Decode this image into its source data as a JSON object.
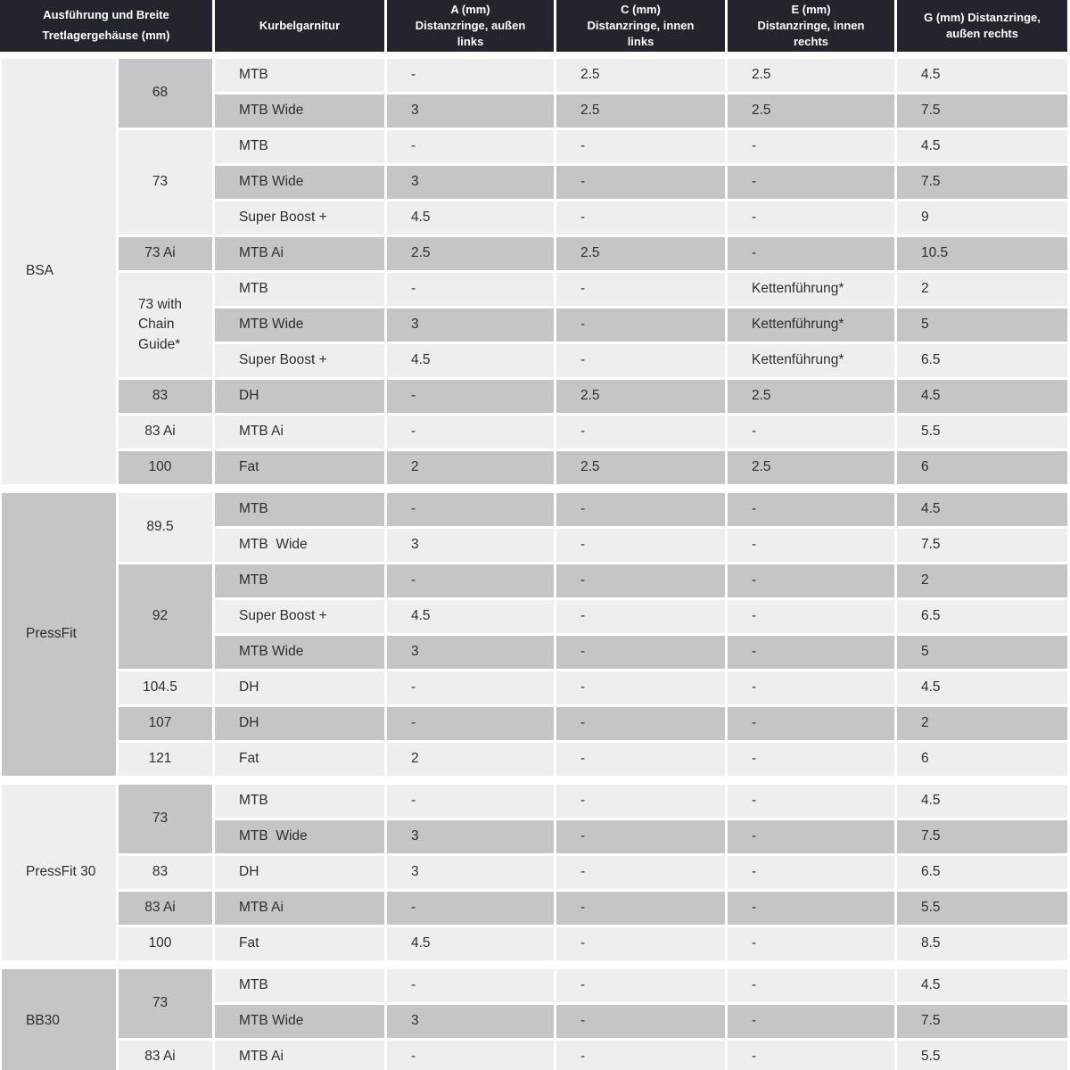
{
  "colors": {
    "header_bg": "#22252b",
    "header_text": "#ffffff",
    "row_light": "#eeeeef",
    "row_dark": "#c5c5c8",
    "text": "#2e2e2e",
    "background": "#ffffff"
  },
  "header": {
    "columns": [
      {
        "label": "Ausführung und Breite\nTretlagergehäuse (mm)"
      },
      {
        "label": "Kurbelgarnitur"
      },
      {
        "label": "A (mm)\nDistanzringe, außen\nlinks"
      },
      {
        "label": "C (mm)\nDistanzringe, innen\nlinks"
      },
      {
        "label": "E (mm)\nDistanzringe, innen\nrechts"
      },
      {
        "label": "G (mm) Distanzringe,\naußen rechts"
      }
    ]
  },
  "sections": [
    {
      "label": "BSA",
      "shade": "light",
      "groups": [
        {
          "width": "68",
          "shade": "dark",
          "rows": [
            {
              "crankset": "MTB",
              "shade": "light",
              "a": "-",
              "c": "2.5",
              "e": "2.5",
              "g": "4.5"
            },
            {
              "crankset": "MTB Wide",
              "shade": "dark",
              "a": "3",
              "c": "2.5",
              "e": "2.5",
              "g": "7.5"
            }
          ]
        },
        {
          "width": "73",
          "shade": "light",
          "rows": [
            {
              "crankset": "MTB",
              "shade": "light",
              "a": "-",
              "c": "-",
              "e": "-",
              "g": "4.5"
            },
            {
              "crankset": "MTB Wide",
              "shade": "dark",
              "a": "3",
              "c": "-",
              "e": "-",
              "g": "7.5"
            },
            {
              "crankset": "Super Boost +",
              "shade": "light",
              "a": "4.5",
              "c": "-",
              "e": "-",
              "g": "9"
            }
          ]
        },
        {
          "width": "73 Ai",
          "shade": "dark",
          "rows": [
            {
              "crankset": "MTB Ai",
              "shade": "dark",
              "a": "2.5",
              "c": "2.5",
              "e": "-",
              "g": "10.5"
            }
          ]
        },
        {
          "width": "73 with\nChain\nGuide*",
          "shade": "light",
          "rows": [
            {
              "crankset": "MTB",
              "shade": "light",
              "a": "-",
              "c": "-",
              "e": "Kettenführung*",
              "g": "2"
            },
            {
              "crankset": "MTB Wide",
              "shade": "dark",
              "a": "3",
              "c": "-",
              "e": "Kettenführung*",
              "g": "5"
            },
            {
              "crankset": "Super Boost +",
              "shade": "light",
              "a": "4.5",
              "c": "-",
              "e": "Kettenführung*",
              "g": "6.5"
            }
          ]
        },
        {
          "width": "83",
          "shade": "dark",
          "rows": [
            {
              "crankset": "DH",
              "shade": "dark",
              "a": "-",
              "c": "2.5",
              "e": "2.5",
              "g": "4.5"
            }
          ]
        },
        {
          "width": "83 Ai",
          "shade": "light",
          "rows": [
            {
              "crankset": "MTB Ai",
              "shade": "light",
              "a": "-",
              "c": "-",
              "e": "-",
              "g": "5.5"
            }
          ]
        },
        {
          "width": "100",
          "shade": "dark",
          "rows": [
            {
              "crankset": "Fat",
              "shade": "dark",
              "a": "2",
              "c": "2.5",
              "e": "2.5",
              "g": "6"
            }
          ]
        }
      ]
    },
    {
      "label": "PressFit",
      "shade": "dark",
      "groups": [
        {
          "width": "89.5",
          "shade": "light",
          "rows": [
            {
              "crankset": "MTB",
              "shade": "dark",
              "a": "-",
              "c": "-",
              "e": "-",
              "g": "4.5"
            },
            {
              "crankset": "MTB  Wide",
              "shade": "light",
              "a": "3",
              "c": "-",
              "e": "-",
              "g": "7.5"
            }
          ]
        },
        {
          "width": "92",
          "shade": "dark",
          "rows": [
            {
              "crankset": "MTB",
              "shade": "dark",
              "a": "-",
              "c": "-",
              "e": "-",
              "g": "2"
            },
            {
              "crankset": "Super Boost +",
              "shade": "light",
              "a": "4.5",
              "c": "-",
              "e": "-",
              "g": "6.5"
            },
            {
              "crankset": "MTB Wide",
              "shade": "dark",
              "a": "3",
              "c": "-",
              "e": "-",
              "g": "5"
            }
          ]
        },
        {
          "width": "104.5",
          "shade": "light",
          "rows": [
            {
              "crankset": "DH",
              "shade": "light",
              "a": "-",
              "c": "-",
              "e": "-",
              "g": "4.5"
            }
          ]
        },
        {
          "width": "107",
          "shade": "dark",
          "rows": [
            {
              "crankset": "DH",
              "shade": "dark",
              "a": "-",
              "c": "-",
              "e": "-",
              "g": "2"
            }
          ]
        },
        {
          "width": "121",
          "shade": "light",
          "rows": [
            {
              "crankset": "Fat",
              "shade": "light",
              "a": "2",
              "c": "-",
              "e": "-",
              "g": "6"
            }
          ]
        }
      ]
    },
    {
      "label": "PressFit 30",
      "shade": "light",
      "groups": [
        {
          "width": "73",
          "shade": "dark",
          "rows": [
            {
              "crankset": "MTB",
              "shade": "light",
              "a": "-",
              "c": "-",
              "e": "-",
              "g": "4.5"
            },
            {
              "crankset": "MTB  Wide",
              "shade": "dark",
              "a": "3",
              "c": "-",
              "e": "-",
              "g": "7.5"
            }
          ]
        },
        {
          "width": "83",
          "shade": "light",
          "rows": [
            {
              "crankset": "DH",
              "shade": "light",
              "a": "3",
              "c": "-",
              "e": "-",
              "g": "6.5"
            }
          ]
        },
        {
          "width": "83 Ai",
          "shade": "dark",
          "rows": [
            {
              "crankset": "MTB Ai",
              "shade": "dark",
              "a": "-",
              "c": "-",
              "e": "-",
              "g": "5.5"
            }
          ]
        },
        {
          "width": "100",
          "shade": "light",
          "rows": [
            {
              "crankset": "Fat",
              "shade": "light",
              "a": "4.5",
              "c": "-",
              "e": "-",
              "g": "8.5"
            }
          ]
        }
      ]
    },
    {
      "label": "BB30",
      "shade": "dark",
      "groups": [
        {
          "width": "73",
          "shade": "dark",
          "rows": [
            {
              "crankset": "MTB",
              "shade": "light",
              "a": "-",
              "c": "-",
              "e": "-",
              "g": "4.5"
            },
            {
              "crankset": "MTB Wide",
              "shade": "dark",
              "a": "3",
              "c": "-",
              "e": "-",
              "g": "7.5"
            }
          ]
        },
        {
          "width": "83 Ai",
          "shade": "light",
          "rows": [
            {
              "crankset": "MTB Ai",
              "shade": "light",
              "a": "-",
              "c": "-",
              "e": "-",
              "g": "5.5"
            }
          ]
        }
      ]
    }
  ]
}
